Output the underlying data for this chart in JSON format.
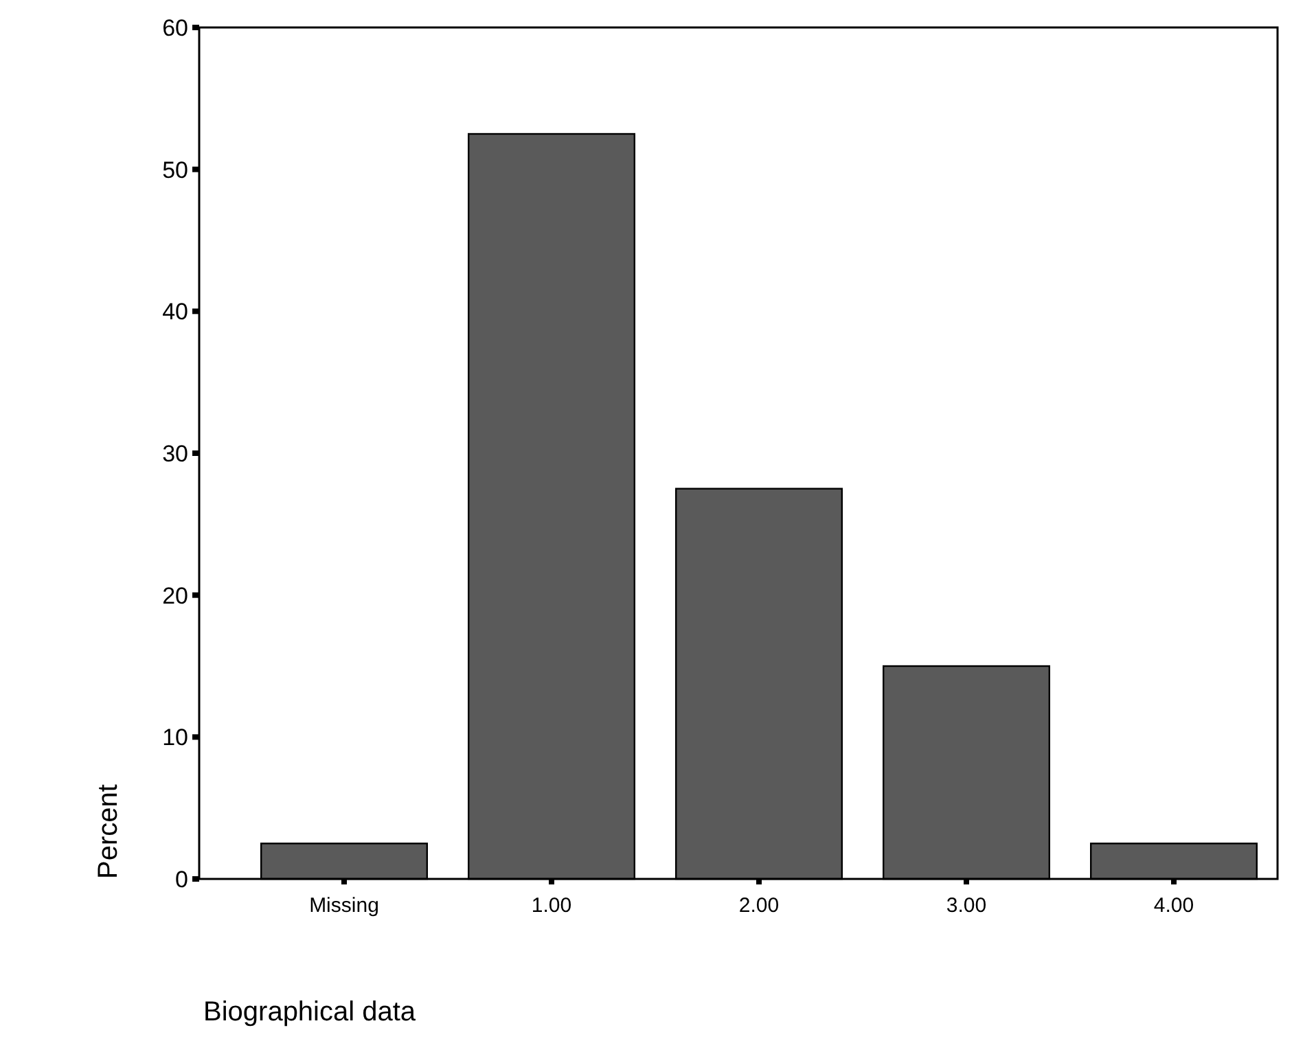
{
  "chart_data": {
    "type": "bar",
    "xlabel": "Biographical data",
    "ylabel": "Percent",
    "categories": [
      "Missing",
      "1.00",
      "2.00",
      "3.00",
      "4.00"
    ],
    "values": [
      2.5,
      52.5,
      27.5,
      15,
      2.5
    ],
    "color": "#5a5a5a",
    "ylim": [
      0,
      60
    ],
    "yticks": [
      0,
      10,
      20,
      30,
      40,
      50,
      60
    ],
    "grid": false
  }
}
